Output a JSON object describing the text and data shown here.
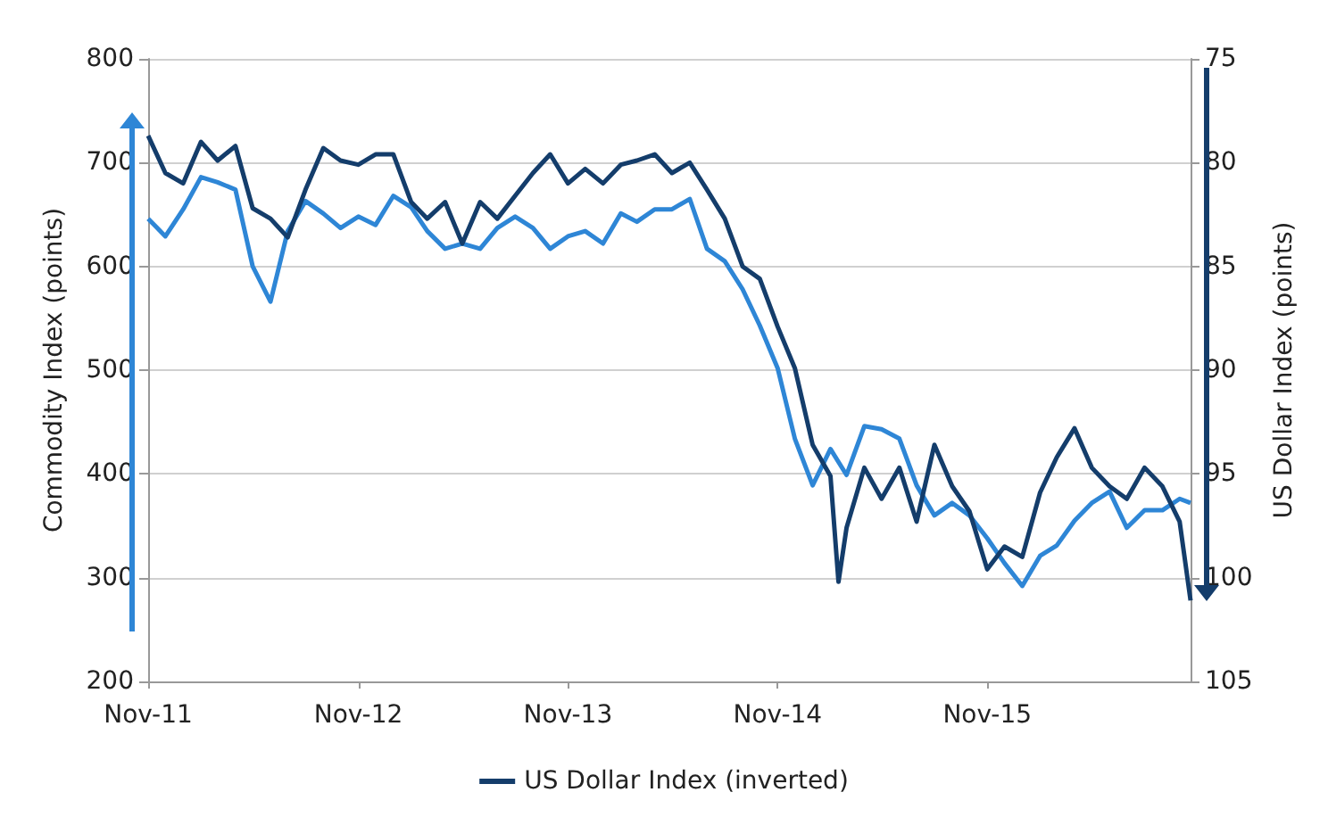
{
  "chart_data": {
    "type": "line",
    "ylabel": "Commodity Index (points)",
    "y2label": "US Dollar Index (points)",
    "xlim": [
      "2011-11-01",
      "2016-10-20"
    ],
    "xticks": [
      {
        "value": "2011-11-01",
        "label": "Nov-11"
      },
      {
        "value": "2012-11-01",
        "label": "Nov-12"
      },
      {
        "value": "2013-11-01",
        "label": "Nov-13"
      },
      {
        "value": "2014-11-01",
        "label": "Nov-14"
      },
      {
        "value": "2015-11-01",
        "label": "Nov-15"
      }
    ],
    "ylim": [
      200,
      800
    ],
    "yticks": [
      200,
      300,
      400,
      500,
      600,
      700,
      800
    ],
    "y2lim": [
      105,
      75
    ],
    "y2ticks": [
      75,
      80,
      85,
      90,
      95,
      100,
      105
    ],
    "grid": "y",
    "legend": "bottom",
    "marker": "none",
    "line_style": "solid",
    "series": [
      {
        "color": "#2e86d6",
        "x": [
          "2011-11-01",
          "2011-12-01",
          "2012-01-01",
          "2012-02-01",
          "2012-03-01",
          "2012-04-01",
          "2012-05-01",
          "2012-06-01",
          "2012-07-01",
          "2012-08-01",
          "2012-09-01",
          "2012-10-01",
          "2012-11-01",
          "2012-12-01",
          "2013-01-01",
          "2013-02-01",
          "2013-03-01",
          "2013-04-01",
          "2013-05-01",
          "2013-06-01",
          "2013-07-01",
          "2013-08-01",
          "2013-09-01",
          "2013-10-01",
          "2013-11-01",
          "2013-12-01",
          "2014-01-01",
          "2014-02-01",
          "2014-03-01",
          "2014-04-01",
          "2014-05-01",
          "2014-06-01",
          "2014-07-01",
          "2014-08-01",
          "2014-09-01",
          "2014-10-01",
          "2014-11-01",
          "2014-12-01",
          "2015-01-01",
          "2015-02-01",
          "2015-03-01",
          "2015-04-01",
          "2015-05-01",
          "2015-06-01",
          "2015-07-01",
          "2015-08-01",
          "2015-09-01",
          "2015-10-01",
          "2015-11-01",
          "2015-12-01",
          "2016-01-01",
          "2016-02-01",
          "2016-03-01",
          "2016-04-01",
          "2016-05-01",
          "2016-06-01",
          "2016-07-01",
          "2016-08-01",
          "2016-09-01",
          "2016-10-01",
          "2016-10-20"
        ],
        "values": [
          646,
          629,
          655,
          686,
          681,
          674,
          600,
          566,
          634,
          663,
          651,
          637,
          648,
          640,
          668,
          657,
          634,
          617,
          622,
          617,
          637,
          648,
          637,
          617,
          629,
          634,
          622,
          651,
          643,
          655,
          655,
          665,
          617,
          605,
          578,
          543,
          502,
          434,
          389,
          424,
          399,
          446,
          443,
          434,
          389,
          360,
          372,
          360,
          338,
          314,
          292,
          321,
          331,
          355,
          372,
          383,
          348,
          365,
          365,
          376,
          372
        ]
      },
      {
        "name": "US Dollar Index (inverted)",
        "color": "#143d6b",
        "axis": "y2",
        "x": [
          "2011-11-01",
          "2011-12-01",
          "2012-01-01",
          "2012-02-01",
          "2012-03-01",
          "2012-04-01",
          "2012-05-01",
          "2012-06-01",
          "2012-07-01",
          "2012-08-01",
          "2012-09-01",
          "2012-10-01",
          "2012-11-01",
          "2012-12-01",
          "2013-01-01",
          "2013-02-01",
          "2013-03-01",
          "2013-04-01",
          "2013-05-01",
          "2013-06-01",
          "2013-07-01",
          "2013-08-01",
          "2013-09-01",
          "2013-10-01",
          "2013-11-01",
          "2013-12-01",
          "2014-01-01",
          "2014-02-01",
          "2014-03-01",
          "2014-04-01",
          "2014-05-01",
          "2014-06-01",
          "2014-07-01",
          "2014-08-01",
          "2014-09-01",
          "2014-10-01",
          "2014-11-01",
          "2014-12-01",
          "2015-01-01",
          "2015-02-01",
          "2015-02-15",
          "2015-03-01",
          "2015-04-01",
          "2015-05-01",
          "2015-06-01",
          "2015-07-01",
          "2015-08-01",
          "2015-09-01",
          "2015-10-01",
          "2015-11-01",
          "2015-12-01",
          "2016-01-01",
          "2016-02-01",
          "2016-03-01",
          "2016-04-01",
          "2016-05-01",
          "2016-06-01",
          "2016-07-01",
          "2016-08-01",
          "2016-09-01",
          "2016-10-01",
          "2016-10-20"
        ],
        "values": [
          78.7,
          80.5,
          81.0,
          79.0,
          79.9,
          79.2,
          82.2,
          82.7,
          83.6,
          81.3,
          79.3,
          79.9,
          80.1,
          79.6,
          79.6,
          81.9,
          82.7,
          81.9,
          83.9,
          81.9,
          82.7,
          81.6,
          80.5,
          79.6,
          81.0,
          80.3,
          81.0,
          80.1,
          79.9,
          79.6,
          80.5,
          80.0,
          81.3,
          82.7,
          85.0,
          85.6,
          87.9,
          89.9,
          93.6,
          95.1,
          100.2,
          97.6,
          94.7,
          96.2,
          94.7,
          97.3,
          93.6,
          95.6,
          96.8,
          99.6,
          98.5,
          99.0,
          95.9,
          94.2,
          92.8,
          94.7,
          95.6,
          96.2,
          94.7,
          95.6,
          97.3,
          101.1
        ]
      }
    ]
  }
}
